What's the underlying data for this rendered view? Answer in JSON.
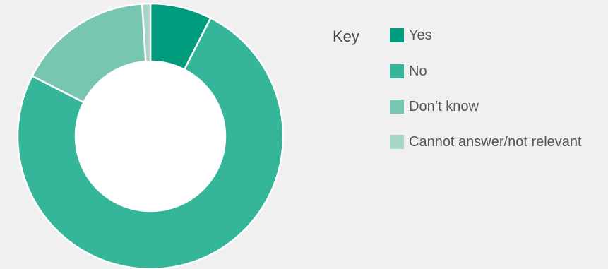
{
  "legend": {
    "title": "Key",
    "items": [
      {
        "label": "Yes",
        "color": "#009b7d"
      },
      {
        "label": "No",
        "color": "#35b69a"
      },
      {
        "label": "Don’t know",
        "color": "#78c5b1"
      },
      {
        "label": "Cannot answer/not relevant",
        "color": "#a6d5c8"
      }
    ]
  },
  "chart_data": {
    "type": "pie",
    "style": "donut",
    "categories": [
      "Yes",
      "No",
      "Don’t know",
      "Cannot answer/not relevant"
    ],
    "values": [
      7.5,
      75.0,
      16.5,
      1.0
    ],
    "unit": "%",
    "colors": [
      "#009b7d",
      "#35b69a",
      "#78c5b1",
      "#a6d5c8"
    ],
    "start_angle_deg": 0,
    "direction": "clockwise",
    "legend_position": "right",
    "title": ""
  }
}
